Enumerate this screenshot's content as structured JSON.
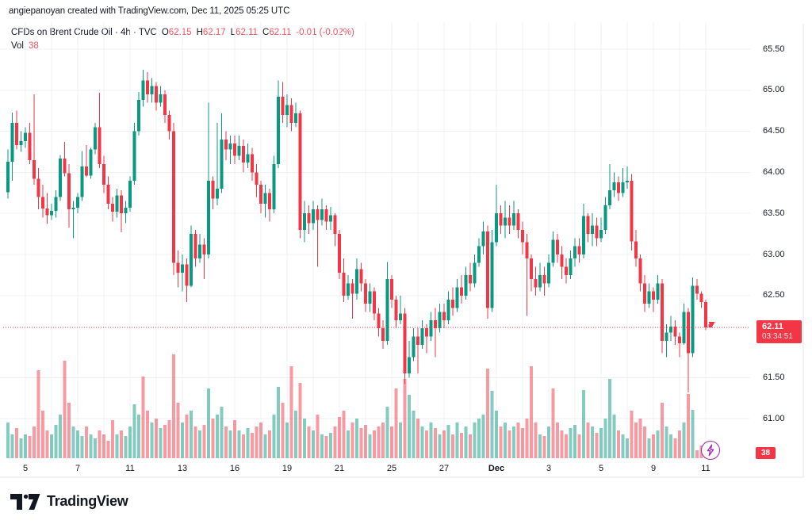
{
  "attribution": "angiepanoyan created with TradingView.com, Dec 11, 2025 05:25 UTC",
  "legend": {
    "title": "CFDs on Brent Crude Oil · 4h · TVC",
    "ohlc": [
      {
        "label": "O",
        "value": "62.15"
      },
      {
        "label": "H",
        "value": "62.17"
      },
      {
        "label": "L",
        "value": "62.11"
      },
      {
        "label": "C",
        "value": "62.11"
      }
    ],
    "change": "-0.01 (-0.02%)",
    "vol_label": "Vol",
    "vol_value": "38"
  },
  "price_line": {
    "price": 62.11,
    "label": "62.11",
    "countdown": "03:34:51"
  },
  "volume_axis_label": "38",
  "footer": {
    "logo_text": "TradingView"
  },
  "chart_data": {
    "type": "candlestick",
    "title": "CFDs on Brent Crude Oil",
    "interval": "4h",
    "exchange": "TVC",
    "current_bar": {
      "o": 62.15,
      "h": 62.17,
      "l": 62.11,
      "c": 62.11,
      "change": -0.01,
      "change_pct": -0.02,
      "volume": 38
    },
    "y_axis": {
      "ticks": [
        65.5,
        65.0,
        64.5,
        64.0,
        63.5,
        63.0,
        62.5,
        61.5,
        61.0
      ],
      "range_top": 65.83,
      "range_bottom": 60.9
    },
    "x_axis": {
      "labels": [
        {
          "text": "5",
          "bar": 4
        },
        {
          "text": "7",
          "bar": 16
        },
        {
          "text": "11",
          "bar": 28
        },
        {
          "text": "13",
          "bar": 40
        },
        {
          "text": "16",
          "bar": 52
        },
        {
          "text": "19",
          "bar": 64
        },
        {
          "text": "21",
          "bar": 76
        },
        {
          "text": "25",
          "bar": 88
        },
        {
          "text": "27",
          "bar": 100
        },
        {
          "text": "Dec",
          "bar": 112,
          "bold": true
        },
        {
          "text": "3",
          "bar": 124
        },
        {
          "text": "5",
          "bar": 136
        },
        {
          "text": "9",
          "bar": 148
        },
        {
          "text": "11",
          "bar": 160
        }
      ]
    },
    "colors": {
      "up": "#089981",
      "down": "#f23645",
      "vol_up": "rgba(8,153,129,0.5)",
      "vol_down": "rgba(242,54,69,0.5)",
      "price_line": "#f23645",
      "grid": "#eef0f3",
      "border": "#e0e3eb"
    },
    "candles": [
      [
        63.76,
        64.28,
        63.68,
        64.13
      ],
      [
        64.13,
        64.73,
        63.9,
        64.6
      ],
      [
        64.6,
        64.75,
        64.28,
        64.33
      ],
      [
        64.33,
        64.5,
        64.25,
        64.38
      ],
      [
        64.38,
        64.55,
        64.3,
        64.48
      ],
      [
        64.48,
        64.6,
        64.1,
        64.15
      ],
      [
        64.15,
        64.95,
        63.85,
        63.92
      ],
      [
        63.92,
        64.05,
        63.55,
        63.7
      ],
      [
        63.7,
        63.85,
        63.45,
        63.56
      ],
      [
        63.56,
        63.75,
        63.37,
        63.48
      ],
      [
        63.48,
        63.62,
        63.42,
        63.53
      ],
      [
        63.53,
        63.78,
        63.45,
        63.7
      ],
      [
        63.7,
        64.21,
        63.65,
        64.17
      ],
      [
        64.17,
        64.37,
        63.95,
        63.99
      ],
      [
        63.99,
        64.1,
        63.33,
        63.55
      ],
      [
        63.55,
        63.65,
        63.2,
        63.57
      ],
      [
        63.57,
        63.75,
        63.5,
        63.7
      ],
      [
        63.7,
        64.26,
        63.65,
        64.07
      ],
      [
        64.07,
        64.33,
        63.94,
        63.96
      ],
      [
        63.96,
        64.3,
        63.92,
        64.28
      ],
      [
        64.28,
        64.6,
        64.22,
        64.55
      ],
      [
        64.55,
        64.97,
        64.05,
        64.1
      ],
      [
        64.1,
        64.2,
        63.75,
        63.85
      ],
      [
        63.85,
        63.95,
        63.55,
        63.62
      ],
      [
        63.62,
        63.7,
        63.4,
        63.52
      ],
      [
        63.52,
        63.8,
        63.45,
        63.72
      ],
      [
        63.72,
        63.78,
        63.27,
        63.5
      ],
      [
        63.5,
        63.65,
        63.38,
        63.57
      ],
      [
        63.57,
        63.95,
        63.52,
        63.9
      ],
      [
        63.9,
        64.6,
        63.85,
        64.5
      ],
      [
        64.5,
        64.98,
        64.45,
        64.88
      ],
      [
        64.88,
        65.25,
        64.8,
        65.12
      ],
      [
        65.12,
        65.22,
        64.85,
        64.95
      ],
      [
        64.95,
        65.15,
        64.85,
        65.05
      ],
      [
        65.05,
        65.1,
        64.75,
        64.85
      ],
      [
        64.85,
        65.05,
        64.8,
        64.95
      ],
      [
        64.95,
        65.0,
        64.6,
        64.7
      ],
      [
        64.7,
        64.75,
        64.4,
        64.5
      ],
      [
        64.5,
        64.6,
        62.75,
        62.9
      ],
      [
        62.9,
        63.05,
        62.6,
        62.78
      ],
      [
        62.78,
        63.0,
        62.55,
        62.88
      ],
      [
        62.88,
        62.95,
        62.42,
        62.62
      ],
      [
        62.62,
        63.35,
        62.6,
        63.25
      ],
      [
        63.25,
        63.3,
        62.85,
        62.95
      ],
      [
        62.95,
        63.25,
        62.9,
        63.12
      ],
      [
        63.12,
        63.2,
        62.7,
        63.0
      ],
      [
        63.0,
        64.85,
        62.95,
        63.9
      ],
      [
        63.9,
        63.95,
        63.55,
        63.68
      ],
      [
        63.68,
        64.6,
        63.6,
        63.8
      ],
      [
        63.8,
        64.72,
        63.75,
        64.4
      ],
      [
        64.4,
        64.5,
        64.15,
        64.28
      ],
      [
        64.28,
        64.45,
        64.1,
        64.35
      ],
      [
        64.35,
        64.45,
        64.1,
        64.2
      ],
      [
        64.2,
        64.45,
        64.15,
        64.32
      ],
      [
        64.32,
        64.4,
        64.0,
        64.12
      ],
      [
        64.12,
        64.35,
        64.05,
        64.22
      ],
      [
        64.22,
        64.3,
        63.9,
        64.0
      ],
      [
        64.0,
        64.1,
        63.7,
        63.85
      ],
      [
        63.85,
        63.9,
        63.5,
        63.62
      ],
      [
        63.62,
        63.85,
        63.45,
        63.75
      ],
      [
        63.75,
        63.8,
        63.4,
        63.55
      ],
      [
        63.55,
        64.2,
        63.5,
        64.1
      ],
      [
        64.1,
        65.12,
        64.05,
        64.92
      ],
      [
        64.92,
        65.1,
        64.6,
        64.7
      ],
      [
        64.7,
        64.95,
        64.55,
        64.82
      ],
      [
        64.82,
        64.9,
        64.5,
        64.6
      ],
      [
        64.6,
        64.85,
        64.55,
        64.72
      ],
      [
        64.72,
        64.75,
        63.2,
        63.3
      ],
      [
        63.3,
        63.65,
        63.15,
        63.5
      ],
      [
        63.5,
        63.6,
        63.25,
        63.38
      ],
      [
        63.38,
        63.65,
        63.3,
        63.55
      ],
      [
        63.55,
        63.6,
        62.85,
        63.42
      ],
      [
        63.42,
        63.68,
        63.35,
        63.55
      ],
      [
        63.55,
        63.6,
        63.3,
        63.4
      ],
      [
        63.4,
        63.58,
        63.3,
        63.48
      ],
      [
        63.48,
        63.5,
        63.1,
        63.25
      ],
      [
        63.25,
        63.3,
        62.7,
        62.78
      ],
      [
        62.78,
        62.95,
        62.42,
        62.5
      ],
      [
        62.5,
        62.75,
        62.45,
        62.65
      ],
      [
        62.65,
        62.7,
        62.22,
        62.52
      ],
      [
        62.52,
        62.95,
        62.45,
        62.82
      ],
      [
        62.82,
        62.9,
        62.55,
        62.65
      ],
      [
        62.65,
        62.7,
        62.3,
        62.4
      ],
      [
        62.4,
        62.65,
        62.3,
        62.55
      ],
      [
        62.55,
        62.6,
        62.2,
        62.28
      ],
      [
        62.28,
        62.35,
        62.0,
        62.1
      ],
      [
        62.1,
        62.2,
        61.85,
        61.95
      ],
      [
        61.95,
        62.91,
        61.9,
        62.7
      ],
      [
        62.7,
        62.75,
        62.35,
        62.45
      ],
      [
        62.45,
        62.5,
        62.1,
        62.2
      ],
      [
        62.2,
        62.5,
        62.15,
        62.28
      ],
      [
        62.28,
        62.35,
        61.42,
        61.55
      ],
      [
        61.55,
        61.95,
        61.5,
        61.75
      ],
      [
        61.75,
        62.1,
        61.7,
        62.0
      ],
      [
        62.0,
        62.1,
        61.55,
        61.9
      ],
      [
        61.9,
        62.2,
        61.85,
        62.1
      ],
      [
        62.1,
        62.15,
        61.8,
        62.0
      ],
      [
        62.0,
        62.3,
        61.95,
        62.2
      ],
      [
        62.2,
        62.35,
        61.75,
        62.1
      ],
      [
        62.1,
        62.4,
        62.05,
        62.3
      ],
      [
        62.3,
        62.4,
        62.1,
        62.2
      ],
      [
        62.2,
        62.55,
        62.15,
        62.45
      ],
      [
        62.45,
        62.6,
        62.25,
        62.35
      ],
      [
        62.35,
        62.7,
        62.3,
        62.6
      ],
      [
        62.6,
        62.75,
        62.4,
        62.5
      ],
      [
        62.5,
        62.85,
        62.45,
        62.75
      ],
      [
        62.75,
        62.9,
        62.55,
        62.65
      ],
      [
        62.65,
        63.0,
        62.6,
        62.9
      ],
      [
        62.9,
        63.2,
        62.85,
        63.1
      ],
      [
        63.1,
        63.4,
        63.0,
        63.28
      ],
      [
        63.28,
        63.35,
        62.22,
        62.35
      ],
      [
        62.35,
        63.3,
        62.3,
        63.15
      ],
      [
        63.15,
        63.85,
        63.1,
        63.5
      ],
      [
        63.5,
        63.6,
        63.25,
        63.35
      ],
      [
        63.35,
        63.65,
        63.2,
        63.45
      ],
      [
        63.45,
        63.6,
        63.25,
        63.35
      ],
      [
        63.35,
        63.65,
        63.3,
        63.5
      ],
      [
        63.5,
        63.55,
        63.2,
        63.3
      ],
      [
        63.3,
        63.4,
        63.0,
        63.15
      ],
      [
        63.15,
        63.25,
        62.25,
        62.95
      ],
      [
        62.95,
        63.0,
        62.55,
        62.7
      ],
      [
        62.7,
        62.85,
        62.5,
        62.6
      ],
      [
        62.6,
        62.9,
        62.55,
        62.75
      ],
      [
        62.75,
        62.85,
        62.5,
        62.65
      ],
      [
        62.65,
        63.0,
        62.6,
        62.9
      ],
      [
        62.9,
        63.28,
        62.85,
        63.18
      ],
      [
        63.18,
        63.25,
        62.9,
        63.0
      ],
      [
        63.0,
        63.1,
        62.7,
        62.85
      ],
      [
        62.85,
        62.95,
        62.65,
        62.75
      ],
      [
        62.75,
        63.05,
        62.7,
        62.95
      ],
      [
        62.95,
        63.2,
        62.85,
        63.1
      ],
      [
        63.1,
        63.2,
        62.9,
        63.0
      ],
      [
        63.0,
        63.62,
        62.95,
        63.47
      ],
      [
        63.47,
        63.5,
        63.15,
        63.25
      ],
      [
        63.25,
        63.5,
        63.1,
        63.35
      ],
      [
        63.35,
        63.45,
        63.1,
        63.2
      ],
      [
        63.2,
        63.45,
        63.15,
        63.3
      ],
      [
        63.3,
        63.7,
        63.25,
        63.6
      ],
      [
        63.6,
        64.1,
        63.55,
        63.78
      ],
      [
        63.78,
        64.0,
        63.7,
        63.88
      ],
      [
        63.88,
        63.95,
        63.65,
        63.75
      ],
      [
        63.75,
        64.05,
        63.7,
        63.88
      ],
      [
        63.88,
        64.07,
        63.8,
        63.9
      ],
      [
        63.9,
        63.98,
        63.05,
        63.16
      ],
      [
        63.16,
        63.3,
        62.85,
        62.95
      ],
      [
        62.95,
        63.0,
        62.55,
        62.65
      ],
      [
        62.65,
        62.75,
        62.3,
        62.4
      ],
      [
        62.4,
        62.65,
        62.35,
        62.55
      ],
      [
        62.55,
        62.6,
        62.3,
        62.45
      ],
      [
        62.45,
        62.75,
        62.4,
        62.65
      ],
      [
        62.65,
        62.7,
        61.8,
        61.95
      ],
      [
        61.95,
        62.15,
        61.75,
        62.05
      ],
      [
        62.05,
        62.25,
        61.95,
        62.12
      ],
      [
        62.12,
        62.2,
        61.9,
        62.0
      ],
      [
        62.0,
        62.05,
        61.75,
        61.92
      ],
      [
        61.92,
        62.4,
        61.9,
        62.3
      ],
      [
        62.3,
        62.35,
        61.32,
        61.8
      ],
      [
        61.8,
        62.72,
        61.75,
        62.62
      ],
      [
        62.62,
        62.7,
        62.45,
        62.52
      ],
      [
        62.52,
        62.55,
        62.35,
        62.42
      ],
      [
        62.42,
        62.45,
        62.08,
        62.11
      ],
      [
        62.15,
        62.17,
        62.11,
        62.11
      ]
    ],
    "volumes": [
      180,
      120,
      152,
      100,
      120,
      112,
      160,
      444,
      240,
      140,
      120,
      168,
      220,
      492,
      280,
      160,
      140,
      112,
      160,
      120,
      100,
      140,
      120,
      88,
      192,
      120,
      140,
      112,
      160,
      272,
      220,
      412,
      240,
      180,
      200,
      152,
      168,
      192,
      524,
      280,
      180,
      220,
      240,
      160,
      140,
      168,
      352,
      200,
      220,
      260,
      160,
      140,
      192,
      140,
      120,
      152,
      128,
      160,
      180,
      120,
      140,
      220,
      360,
      280,
      180,
      464,
      240,
      380,
      200,
      160,
      140,
      220,
      120,
      112,
      128,
      160,
      208,
      240,
      140,
      180,
      200,
      152,
      168,
      120,
      140,
      160,
      180,
      260,
      160,
      352,
      180,
      400,
      320,
      240,
      200,
      160,
      140,
      180,
      152,
      120,
      140,
      168,
      120,
      180,
      128,
      160,
      120,
      180,
      200,
      220,
      452,
      340,
      240,
      160,
      180,
      140,
      160,
      180,
      152,
      200,
      464,
      180,
      120,
      112,
      160,
      352,
      180,
      140,
      120,
      152,
      168,
      120,
      344,
      180,
      160,
      128,
      152,
      200,
      400,
      220,
      140,
      120,
      100,
      240,
      180,
      200,
      160,
      100,
      120,
      140,
      280,
      160,
      120,
      100,
      140,
      180,
      324,
      244,
      40,
      64,
      80,
      38
    ],
    "volume_color_overrides": {
      "31": "down",
      "125": "down"
    }
  }
}
